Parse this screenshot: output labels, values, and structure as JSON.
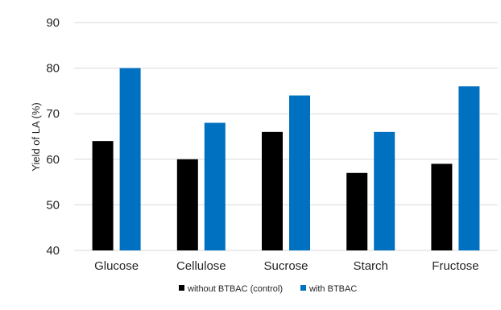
{
  "chart_data": {
    "type": "bar",
    "title": "",
    "xlabel": "",
    "ylabel": "Yield of LA (%)",
    "ylim": [
      40,
      90
    ],
    "yticks": [
      40,
      50,
      60,
      70,
      80,
      90
    ],
    "grid": true,
    "legend_position": "bottom",
    "categories": [
      "Glucose",
      "Cellulose",
      "Sucrose",
      "Starch",
      "Fructose"
    ],
    "series": [
      {
        "name": "without BTBAC (control)",
        "color": "#000000",
        "values": [
          64,
          60,
          66,
          57,
          59
        ]
      },
      {
        "name": "with BTBAC",
        "color": "#0070C0",
        "values": [
          80,
          68,
          74,
          66,
          76
        ]
      }
    ]
  }
}
